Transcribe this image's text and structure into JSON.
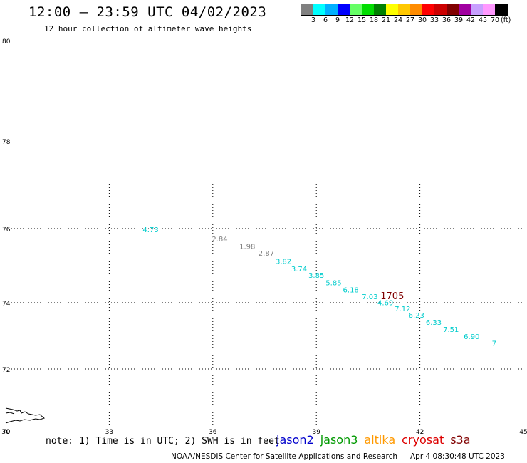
{
  "header": {
    "title": "12:00 — 23:59 UTC 04/02/2023",
    "subtitle": "12 hour collection of altimeter wave heights"
  },
  "legend": {
    "colors": [
      "#808080",
      "#00ffff",
      "#00b0ff",
      "#0000ff",
      "#66ff66",
      "#00dd00",
      "#008000",
      "#ffff00",
      "#ffc800",
      "#ff8c00",
      "#ff0000",
      "#cc0000",
      "#800000",
      "#a000a0",
      "#c8a0ff",
      "#ff99ff",
      "#000000"
    ],
    "labels": [
      "3",
      "6",
      "9",
      "12",
      "15",
      "18",
      "21",
      "24",
      "27",
      "30",
      "33",
      "36",
      "39",
      "42",
      "45",
      "70"
    ],
    "unit": "(ft)"
  },
  "chart_data": {
    "type": "scatter",
    "title": "",
    "xlim": [
      30,
      45
    ],
    "ylim": [
      70,
      80
    ],
    "x_ticks": [
      "30",
      "33",
      "36",
      "39",
      "42",
      "45"
    ],
    "y_ticks": [
      "70",
      "72",
      "74",
      "76",
      "78",
      "80"
    ],
    "grid": true,
    "labels": [
      {
        "text": "4.73",
        "lon": 34.2,
        "lat": 75.9,
        "color": "#00cccc"
      },
      {
        "text": "2.84",
        "lon": 36.2,
        "lat": 75.65,
        "color": "#808080"
      },
      {
        "text": "1.98",
        "lon": 37.0,
        "lat": 75.45,
        "color": "#808080"
      },
      {
        "text": "2.87",
        "lon": 37.55,
        "lat": 75.27,
        "color": "#808080"
      },
      {
        "text": "3.82",
        "lon": 38.05,
        "lat": 75.05,
        "color": "#00cccc"
      },
      {
        "text": "3.74",
        "lon": 38.5,
        "lat": 74.85,
        "color": "#00cccc"
      },
      {
        "text": "3.85",
        "lon": 39.0,
        "lat": 74.67,
        "color": "#00cccc"
      },
      {
        "text": "5.85",
        "lon": 39.5,
        "lat": 74.47,
        "color": "#00cccc"
      },
      {
        "text": "6.18",
        "lon": 40.0,
        "lat": 74.28,
        "color": "#00cccc"
      },
      {
        "text": "7.03",
        "lon": 40.55,
        "lat": 74.1,
        "color": "#00cccc"
      },
      {
        "text": "4.69",
        "lon": 41.0,
        "lat": 73.92,
        "color": "#00cccc"
      },
      {
        "text": "7.12",
        "lon": 41.5,
        "lat": 73.74,
        "color": "#00cccc"
      },
      {
        "text": "6.23",
        "lon": 41.9,
        "lat": 73.55,
        "color": "#00cccc"
      },
      {
        "text": "6.33",
        "lon": 42.4,
        "lat": 73.33,
        "color": "#00cccc"
      },
      {
        "text": "7.51",
        "lon": 42.9,
        "lat": 73.12,
        "color": "#00cccc"
      },
      {
        "text": "6.90",
        "lon": 43.5,
        "lat": 72.9,
        "color": "#00cccc"
      },
      {
        "text": "7",
        "lon": 44.15,
        "lat": 72.7,
        "color": "#00cccc"
      },
      {
        "text": "1705",
        "lon": 41.2,
        "lat": 74.1,
        "color": "#800000"
      }
    ]
  },
  "footer": {
    "note": "note: 1) Time is in UTC; 2) SWH is in feet",
    "satellites": [
      {
        "name": "jason2",
        "color": "#0000cc"
      },
      {
        "name": "jason3",
        "color": "#009900"
      },
      {
        "name": "altika",
        "color": "#ff9900"
      },
      {
        "name": "cryosat",
        "color": "#dd0000"
      },
      {
        "name": "s3a",
        "color": "#800000"
      }
    ],
    "credit": "NOAA/NESDIS Center for Satellite Applications and Research",
    "timestamp": "Apr  4 08:30:48 UTC 2023"
  }
}
